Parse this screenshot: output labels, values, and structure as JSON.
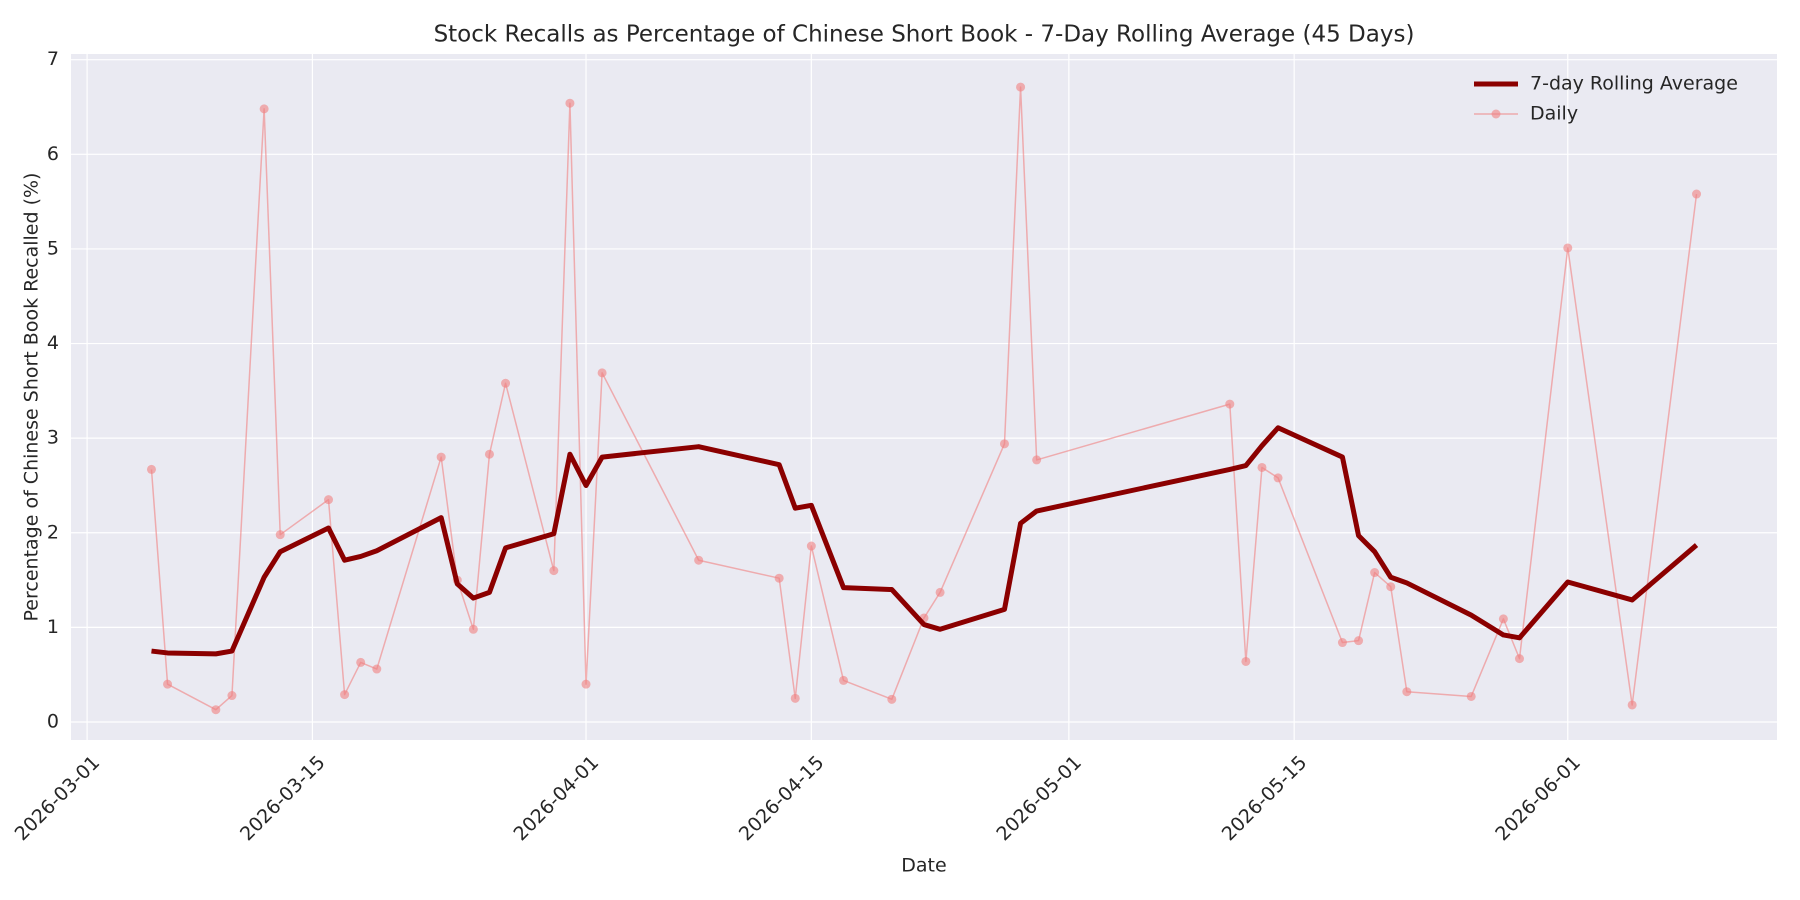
{
  "chart_data": {
    "type": "line",
    "title": "Stock Recalls as Percentage of Chinese Short Book - 7-Day Rolling Average (45 Days)",
    "xlabel": "Date",
    "ylabel": "Percentage of Chinese Short Book Recalled (%)",
    "x": [
      "2026-03-05",
      "2026-03-06",
      "2026-03-09",
      "2026-03-10",
      "2026-03-12",
      "2026-03-13",
      "2026-03-16",
      "2026-03-17",
      "2026-03-18",
      "2026-03-19",
      "2026-03-23",
      "2026-03-24",
      "2026-03-25",
      "2026-03-26",
      "2026-03-27",
      "2026-03-30",
      "2026-03-31",
      "2026-04-01",
      "2026-04-02",
      "2026-04-08",
      "2026-04-13",
      "2026-04-14",
      "2026-04-15",
      "2026-04-17",
      "2026-04-20",
      "2026-04-22",
      "2026-04-23",
      "2026-04-27",
      "2026-04-28",
      "2026-04-29",
      "2026-05-11",
      "2026-05-12",
      "2026-05-13",
      "2026-05-14",
      "2026-05-18",
      "2026-05-19",
      "2026-05-20",
      "2026-05-21",
      "2026-05-22",
      "2026-05-26",
      "2026-05-28",
      "2026-05-29",
      "2026-06-01",
      "2026-06-05",
      "2026-06-09"
    ],
    "series": [
      {
        "name": "7-day Rolling Average",
        "color": "#8b0000",
        "line_width": 5,
        "markers": false,
        "values": [
          0.75,
          0.73,
          0.72,
          0.75,
          1.53,
          1.8,
          2.05,
          1.71,
          1.75,
          1.81,
          2.16,
          1.46,
          1.31,
          1.37,
          1.84,
          1.99,
          2.83,
          2.5,
          2.8,
          2.91,
          2.72,
          2.26,
          2.29,
          1.42,
          1.4,
          1.03,
          0.98,
          1.19,
          2.1,
          2.23,
          2.67,
          2.71,
          2.92,
          3.11,
          2.8,
          1.97,
          1.8,
          1.53,
          1.47,
          1.13,
          0.92,
          0.89,
          1.48,
          1.29,
          1.87
        ]
      },
      {
        "name": "Daily",
        "color": "#f08080",
        "line_width": 1.5,
        "markers": true,
        "values": [
          2.67,
          0.4,
          0.13,
          0.28,
          6.48,
          1.98,
          2.35,
          0.29,
          0.63,
          0.56,
          2.8,
          1.5,
          0.98,
          2.83,
          3.58,
          1.6,
          6.54,
          0.4,
          3.69,
          1.71,
          1.52,
          0.25,
          1.86,
          0.44,
          0.24,
          1.1,
          1.37,
          2.94,
          6.71,
          2.77,
          3.36,
          0.64,
          2.69,
          2.58,
          0.84,
          0.86,
          1.58,
          1.43,
          0.32,
          0.27,
          1.09,
          0.67,
          5.01,
          0.18,
          5.58
        ]
      }
    ],
    "xlim": [
      "2026-02-28",
      "2026-06-14"
    ],
    "xticks": [
      "2026-03-01",
      "2026-03-15",
      "2026-04-01",
      "2026-04-15",
      "2026-05-01",
      "2026-05-15",
      "2026-06-01"
    ],
    "ylim": [
      -0.19,
      7.06
    ],
    "yticks": [
      0,
      1,
      2,
      3,
      4,
      5,
      6,
      7
    ],
    "grid": true,
    "legend": "upper right"
  }
}
